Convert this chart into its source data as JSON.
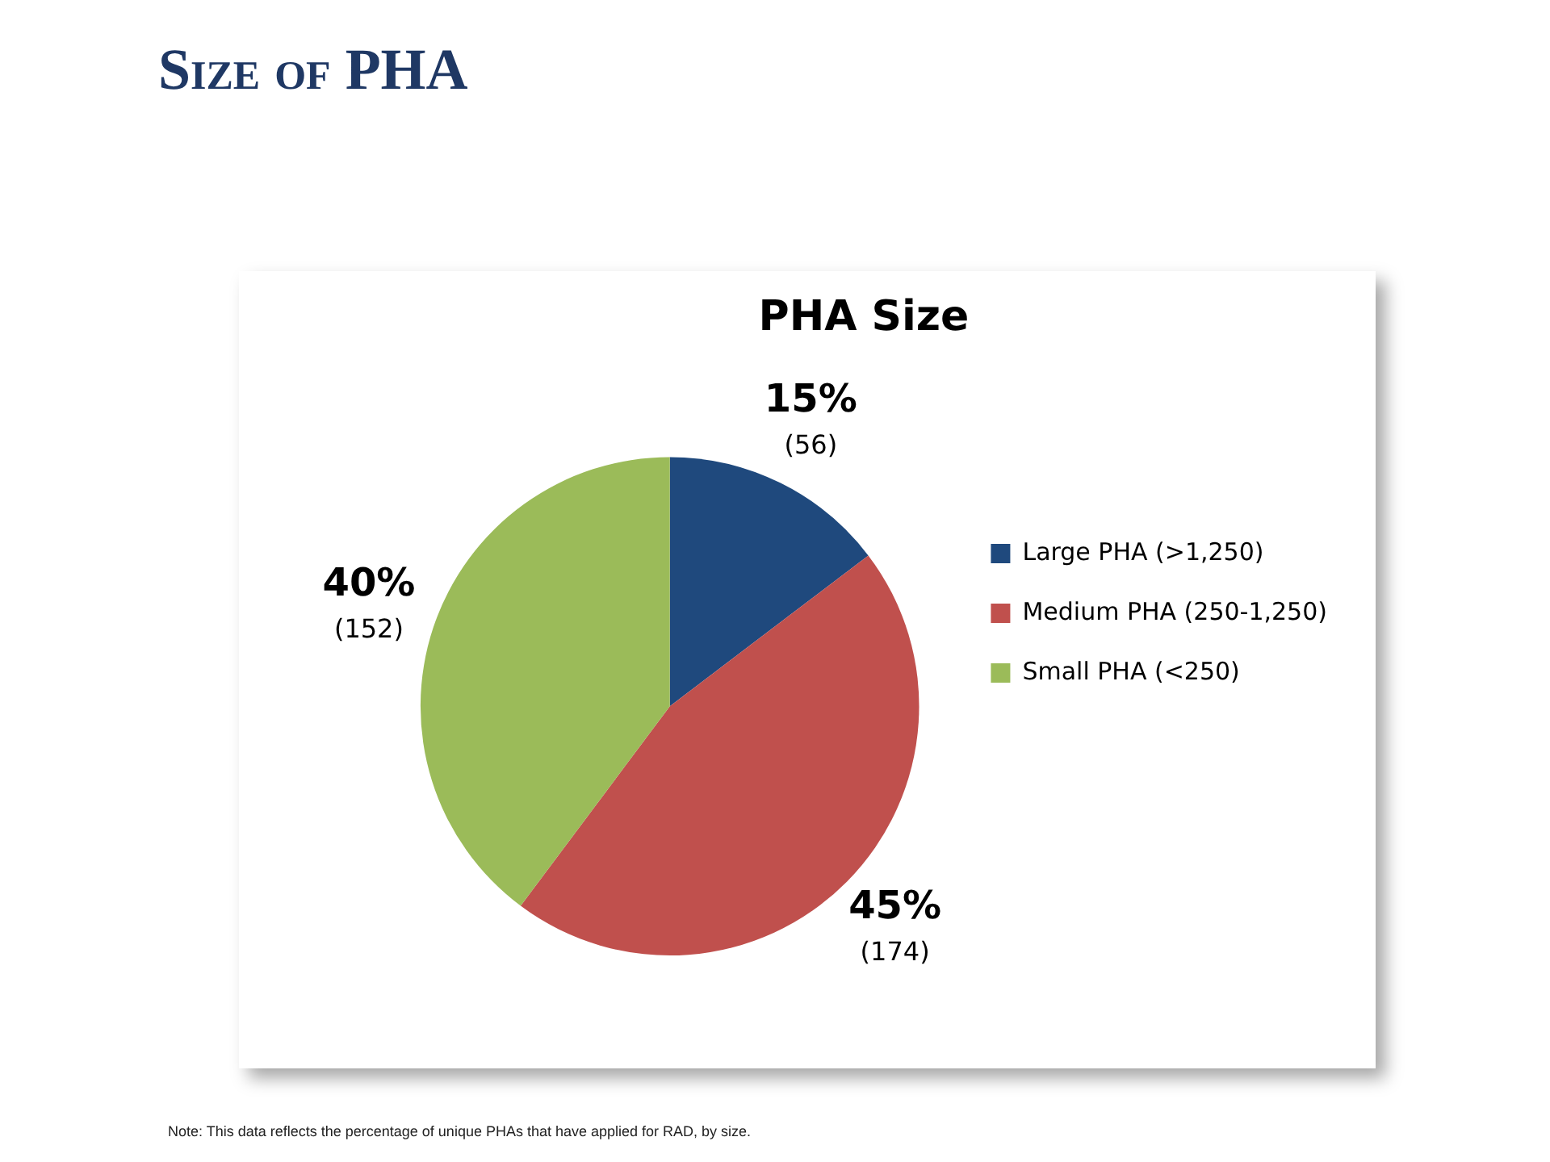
{
  "chart_data": {
    "type": "pie",
    "title": "Size of PHA",
    "subtitle": "PHA Size",
    "categories": [
      "Large PHA (>1,250)",
      "Medium PHA (250-1,250)",
      "Small PHA (<250)"
    ],
    "values": [
      56,
      174,
      152
    ],
    "colors": [
      "#1f497d",
      "#c0504d",
      "#9bbb59"
    ],
    "value_labels": [
      "15%\n(56)",
      "45%\n(174)",
      "40%\n(152)"
    ],
    "legend": "right",
    "annotations": [
      "Note: This data reflects the percentage of unique PHAs that have applied for RAD, by size."
    ]
  }
}
